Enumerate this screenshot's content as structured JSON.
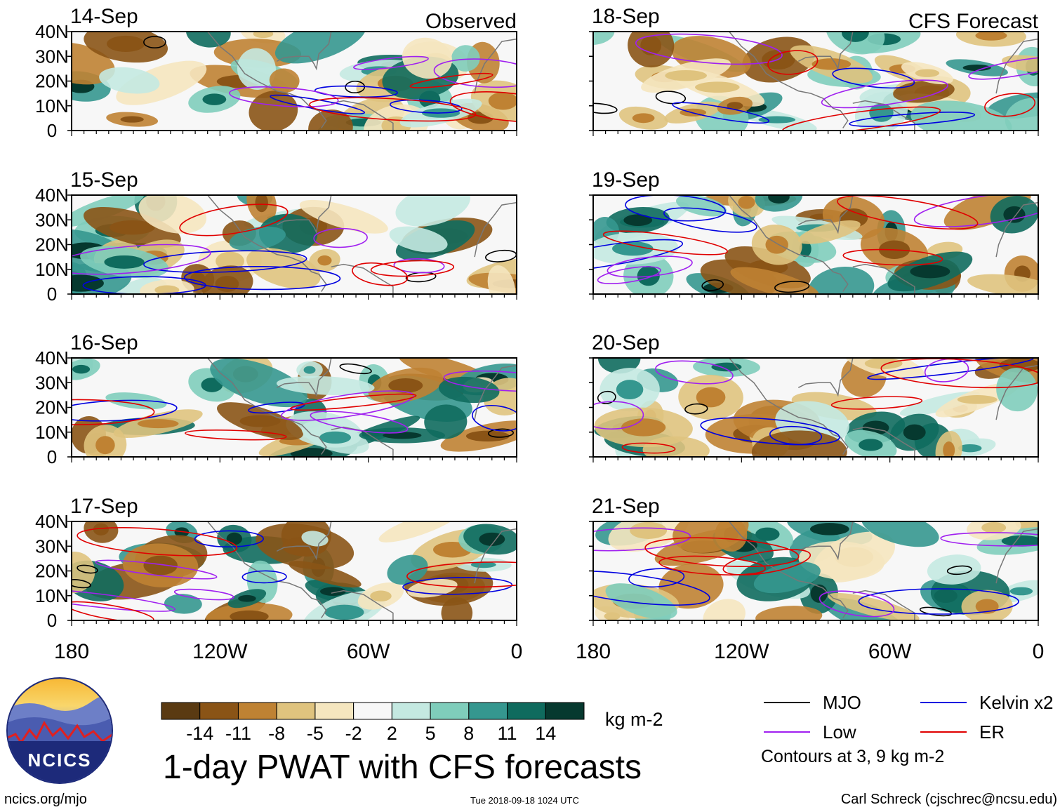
{
  "chart_data": {
    "type": "heatmap",
    "title": "1-day PWAT with CFS forecasts",
    "units": "kg m-2",
    "source": "ncics.org/mjo",
    "timestamp": "Tue 2018-09-18 1024 UTC",
    "credit": "Carl Schreck (cjschrec@ncsu.edu)",
    "column_titles": [
      "Observed",
      "CFS Forecast"
    ],
    "y_ticks": [
      "40N",
      "30N",
      "20N",
      "10N",
      "0"
    ],
    "x_ticks": [
      "180",
      "120W",
      "60W",
      "0"
    ],
    "xlim": [
      -180,
      0
    ],
    "ylim": [
      0,
      40
    ],
    "panels": [
      {
        "date": "14-Sep",
        "source": "Observed"
      },
      {
        "date": "15-Sep",
        "source": "Observed"
      },
      {
        "date": "16-Sep",
        "source": "Observed"
      },
      {
        "date": "17-Sep",
        "source": "Observed"
      },
      {
        "date": "18-Sep",
        "source": "CFS Forecast"
      },
      {
        "date": "19-Sep",
        "source": "CFS Forecast"
      },
      {
        "date": "20-Sep",
        "source": "CFS Forecast"
      },
      {
        "date": "21-Sep",
        "source": "CFS Forecast"
      }
    ],
    "colorbar": {
      "boundaries": [
        "-14",
        "-11",
        "-8",
        "-5",
        "-2",
        "2",
        "5",
        "8",
        "11",
        "14"
      ],
      "colors": [
        "#5a3a12",
        "#8a5416",
        "#bf8233",
        "#dfc37e",
        "#f5e6bf",
        "#f7f7f7",
        "#c4e9e1",
        "#7fcdbb",
        "#35978f",
        "#0f6b5e",
        "#06392f"
      ]
    },
    "legend": [
      {
        "label": "MJO",
        "color": "#000000"
      },
      {
        "label": "Kelvin x2",
        "color": "#0000e0"
      },
      {
        "label": "Low",
        "color": "#a020f0"
      },
      {
        "label": "ER",
        "color": "#e00000"
      }
    ],
    "contour_note": "Contours at 3, 9 kg m-2"
  },
  "logo": {
    "text": "NCICS"
  }
}
